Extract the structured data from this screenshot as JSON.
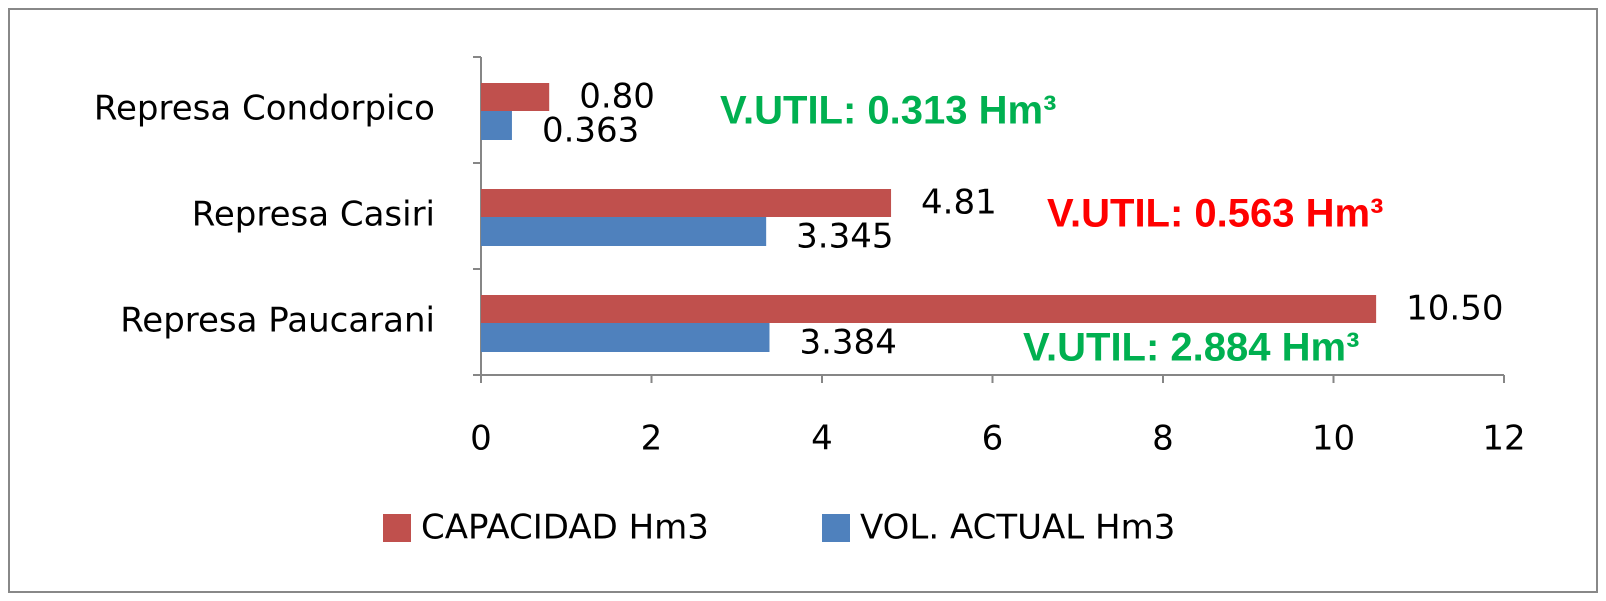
{
  "chart_data": {
    "type": "hbar",
    "categories": [
      "Represa Condorpico",
      "Represa Casiri",
      "Represa Paucarani"
    ],
    "series": [
      {
        "name": "CAPACIDAD Hm3",
        "color": "#c0504d",
        "values": [
          0.8,
          4.81,
          10.5
        ],
        "value_labels": [
          "0.80",
          "4.81",
          "10.50"
        ]
      },
      {
        "name": "VOL. ACTUAL Hm3",
        "color": "#4f81bd",
        "values": [
          0.363,
          3.345,
          3.384
        ],
        "value_labels": [
          "0.363",
          "3.345",
          "3.384"
        ]
      }
    ],
    "xlim": [
      0,
      12
    ],
    "xticks": [
      0,
      2,
      4,
      6,
      8,
      10,
      12
    ],
    "legend": "bottom",
    "annotations": [
      {
        "text": "V.UTIL: 0.313 Hm³",
        "color": "#00b050"
      },
      {
        "text": "V.UTIL: 0.563 Hm³",
        "color": "#ff0000"
      },
      {
        "text": "V.UTIL: 2.884 Hm³",
        "color": "#00b050"
      }
    ]
  }
}
